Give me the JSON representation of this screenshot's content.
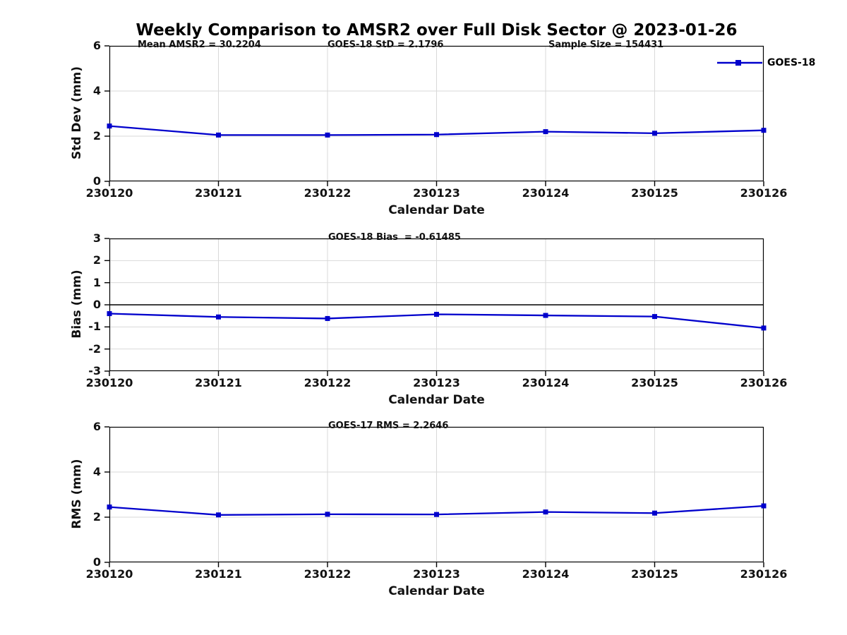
{
  "title": "Weekly Comparison to AMSR2 over Full Disk Sector @ 2023-01-26",
  "legend": {
    "label": "GOES-18"
  },
  "colors": {
    "line": "#0000CC",
    "grid": "#D9D9D9",
    "axis": "#000000",
    "text": "#111111"
  },
  "chart_data": [
    {
      "type": "line",
      "ylabel": "Std Dev (mm)",
      "xlabel": "Calendar Date",
      "x_categories": [
        "230120",
        "230121",
        "230122",
        "230123",
        "230124",
        "230125",
        "230126"
      ],
      "yticks": [
        0,
        2,
        4,
        6
      ],
      "ylim": [
        0,
        6
      ],
      "grid": true,
      "zero_line": false,
      "series": [
        {
          "name": "GOES-18",
          "marker": "square",
          "values": [
            2.45,
            2.05,
            2.05,
            2.07,
            2.2,
            2.13,
            2.26
          ]
        }
      ],
      "annotations": [
        {
          "text": "Mean AMSR2 = 30.2204",
          "x": 195
        },
        {
          "text": "GOES-18 StD = 2.1796",
          "x": 464
        },
        {
          "text": "Sample Size = 154431",
          "x": 777
        }
      ]
    },
    {
      "type": "line",
      "ylabel": "Bias (mm)",
      "xlabel": "Calendar Date",
      "x_categories": [
        "230120",
        "230121",
        "230122",
        "230123",
        "230124",
        "230125",
        "230126"
      ],
      "yticks": [
        -3,
        -2,
        -1,
        0,
        1,
        2,
        3
      ],
      "ylim": [
        -3,
        3
      ],
      "grid": true,
      "zero_line": true,
      "series": [
        {
          "name": "GOES-18",
          "marker": "square",
          "values": [
            -0.4,
            -0.55,
            -0.62,
            -0.43,
            -0.48,
            -0.53,
            -1.05
          ]
        }
      ],
      "annotations": [
        {
          "text": "GOES-18 Bias  = -0.61485",
          "x": 465
        }
      ]
    },
    {
      "type": "line",
      "ylabel": "RMS (mm)",
      "xlabel": "Calendar Date",
      "x_categories": [
        "230120",
        "230121",
        "230122",
        "230123",
        "230124",
        "230125",
        "230126"
      ],
      "yticks": [
        0,
        2,
        4,
        6
      ],
      "ylim": [
        0,
        6
      ],
      "grid": true,
      "zero_line": false,
      "series": [
        {
          "name": "GOES-18",
          "marker": "square",
          "values": [
            2.45,
            2.1,
            2.13,
            2.12,
            2.23,
            2.18,
            2.5
          ]
        }
      ],
      "annotations": [
        {
          "text": "GOES-17 RMS = 2.2646",
          "x": 465
        }
      ]
    }
  ]
}
